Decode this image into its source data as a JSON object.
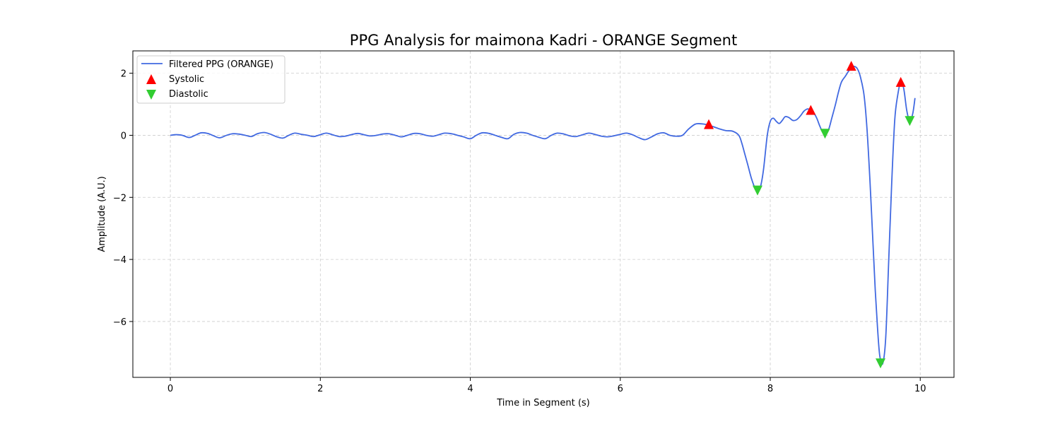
{
  "chart_data": {
    "type": "line",
    "title": "PPG Analysis for maimona Kadri - ORANGE Segment",
    "xlabel": "Time in Segment (s)",
    "ylabel": "Amplitude (A.U.)",
    "xlim": [
      -0.5,
      10.45
    ],
    "ylim": [
      -7.8,
      2.72
    ],
    "xticks": [
      0,
      2,
      4,
      6,
      8,
      10
    ],
    "yticks": [
      -6,
      -4,
      -2,
      0,
      2
    ],
    "grid": true,
    "legend_position": "upper-left",
    "colors": {
      "line": "#4169E1",
      "systolic": "#FF0000",
      "diastolic": "#32CD32"
    },
    "series": [
      {
        "name": "Filtered PPG (ORANGE)",
        "kind": "line",
        "x": [
          0.0,
          0.08,
          0.16,
          0.25,
          0.33,
          0.41,
          0.5,
          0.58,
          0.66,
          0.75,
          0.83,
          0.91,
          1.0,
          1.08,
          1.16,
          1.25,
          1.33,
          1.41,
          1.5,
          1.58,
          1.66,
          1.75,
          1.83,
          1.91,
          2.0,
          2.08,
          2.16,
          2.25,
          2.33,
          2.41,
          2.5,
          2.58,
          2.66,
          2.75,
          2.83,
          2.91,
          3.0,
          3.08,
          3.16,
          3.25,
          3.33,
          3.41,
          3.5,
          3.58,
          3.66,
          3.75,
          3.83,
          3.91,
          4.0,
          4.08,
          4.16,
          4.25,
          4.33,
          4.41,
          4.5,
          4.58,
          4.66,
          4.75,
          4.83,
          4.91,
          5.0,
          5.08,
          5.16,
          5.25,
          5.33,
          5.41,
          5.5,
          5.58,
          5.66,
          5.75,
          5.83,
          5.91,
          6.0,
          6.08,
          6.16,
          6.25,
          6.33,
          6.41,
          6.5,
          6.58,
          6.66,
          6.75,
          6.83,
          6.91,
          7.0,
          7.08,
          7.16,
          7.25,
          7.33,
          7.41,
          7.5,
          7.58,
          7.62,
          7.66,
          7.7,
          7.75,
          7.8,
          7.83,
          7.87,
          7.91,
          7.96,
          8.0,
          8.04,
          8.08,
          8.12,
          8.16,
          8.2,
          8.25,
          8.3,
          8.35,
          8.4,
          8.45,
          8.5,
          8.54,
          8.58,
          8.62,
          8.66,
          8.7,
          8.74,
          8.78,
          8.82,
          8.87,
          8.91,
          8.95,
          9.0,
          9.04,
          9.08,
          9.12,
          9.16,
          9.2,
          9.25,
          9.29,
          9.33,
          9.37,
          9.4,
          9.43,
          9.46,
          9.5,
          9.54,
          9.58,
          9.62,
          9.66,
          9.7,
          9.74,
          9.78,
          9.82,
          9.86,
          9.9,
          9.93
        ],
        "y": [
          0.0,
          0.02,
          0.0,
          -0.07,
          0.0,
          0.08,
          0.06,
          -0.02,
          -0.08,
          0.0,
          0.05,
          0.04,
          0.0,
          -0.04,
          0.05,
          0.09,
          0.04,
          -0.04,
          -0.09,
          0.0,
          0.07,
          0.03,
          0.0,
          -0.04,
          0.02,
          0.07,
          0.02,
          -0.04,
          -0.03,
          0.02,
          0.06,
          0.02,
          -0.02,
          0.0,
          0.04,
          0.05,
          0.0,
          -0.05,
          0.0,
          0.06,
          0.05,
          0.0,
          -0.03,
          0.02,
          0.07,
          0.05,
          0.0,
          -0.05,
          -0.11,
          0.0,
          0.08,
          0.06,
          0.0,
          -0.06,
          -0.11,
          0.03,
          0.09,
          0.07,
          0.0,
          -0.06,
          -0.11,
          0.0,
          0.07,
          0.04,
          -0.02,
          -0.04,
          0.02,
          0.07,
          0.03,
          -0.03,
          -0.05,
          -0.02,
          0.03,
          0.07,
          0.02,
          -0.08,
          -0.14,
          -0.06,
          0.05,
          0.08,
          0.0,
          -0.03,
          0.0,
          0.2,
          0.36,
          0.37,
          0.34,
          0.27,
          0.2,
          0.15,
          0.13,
          0.0,
          -0.25,
          -0.6,
          -0.95,
          -1.4,
          -1.72,
          -1.78,
          -1.65,
          -1.1,
          0.0,
          0.45,
          0.55,
          0.45,
          0.38,
          0.48,
          0.6,
          0.57,
          0.48,
          0.5,
          0.62,
          0.78,
          0.85,
          0.8,
          0.72,
          0.55,
          0.3,
          0.1,
          0.07,
          0.2,
          0.55,
          1.0,
          1.4,
          1.72,
          1.9,
          2.05,
          2.18,
          2.22,
          2.15,
          1.9,
          1.3,
          0.2,
          -1.5,
          -3.5,
          -5.0,
          -6.2,
          -7.1,
          -7.35,
          -6.5,
          -4.0,
          -1.5,
          0.5,
          1.3,
          1.72,
          1.5,
          0.8,
          0.46,
          0.7,
          1.2
        ]
      },
      {
        "name": "Systolic",
        "kind": "marker-up",
        "x": [
          7.18,
          8.54,
          9.08,
          9.74
        ],
        "y": [
          0.36,
          0.82,
          2.24,
          1.72
        ]
      },
      {
        "name": "Diastolic",
        "kind": "marker-down",
        "x": [
          7.83,
          8.73,
          9.47,
          9.86
        ],
        "y": [
          -1.78,
          0.05,
          -7.35,
          0.46
        ]
      }
    ]
  }
}
